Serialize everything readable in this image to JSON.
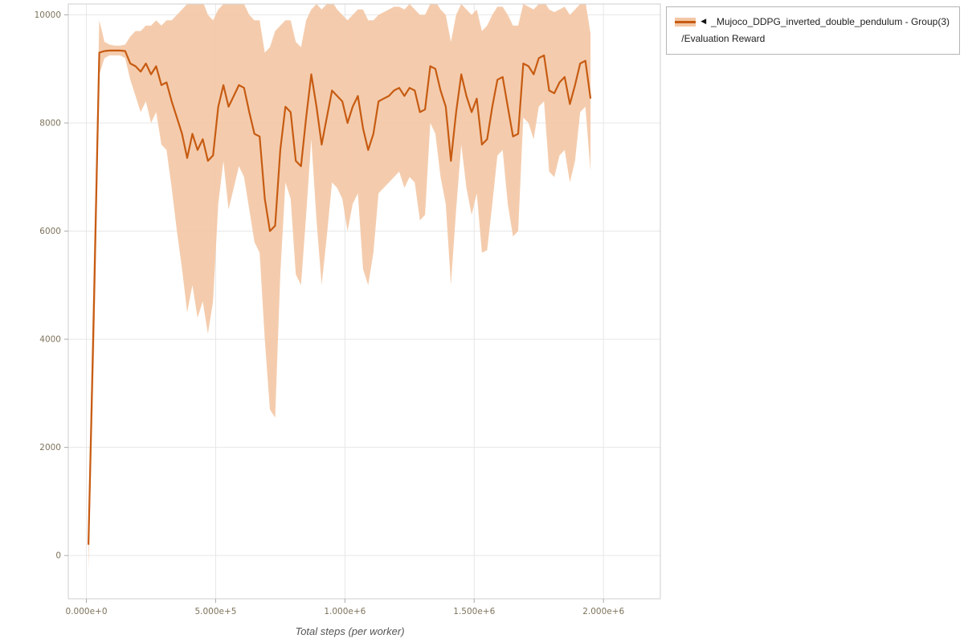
{
  "legend": {
    "collapse_marker": "◀",
    "group_label": "_Mujoco_DDPG_inverted_double_pendulum - Group(3)",
    "metric_label": "/Evaluation Reward"
  },
  "colors": {
    "line": "#c75b12",
    "band": "#f3c7a4"
  },
  "axes": {
    "x_label": "Total steps (per worker)",
    "x_ticks": [
      {
        "value": 0,
        "label": "0.000e+0"
      },
      {
        "value": 500000,
        "label": "5.000e+5"
      },
      {
        "value": 1000000,
        "label": "1.000e+6"
      },
      {
        "value": 1500000,
        "label": "1.500e+6"
      },
      {
        "value": 2000000,
        "label": "2.000e+6"
      }
    ],
    "y_ticks": [
      {
        "value": 0,
        "label": "0"
      },
      {
        "value": 2000,
        "label": "2000"
      },
      {
        "value": 4000,
        "label": "4000"
      },
      {
        "value": 6000,
        "label": "6000"
      },
      {
        "value": 8000,
        "label": "8000"
      },
      {
        "value": 10000,
        "label": "10000"
      }
    ]
  },
  "chart_data": {
    "type": "line",
    "title": "",
    "xlabel": "Total steps (per worker)",
    "ylabel": "Evaluation Reward",
    "series_name": "_Mujoco_DDPG_inverted_double_pendulum - Group(3) /Evaluation Reward",
    "legend_position": "top-right-outside",
    "grid": true,
    "xlim": [
      -70000,
      2220000
    ],
    "ylim": [
      -800,
      10200
    ],
    "x": [
      8000,
      30000,
      50000,
      70000,
      90000,
      110000,
      130000,
      150000,
      170000,
      190000,
      210000,
      230000,
      250000,
      270000,
      290000,
      310000,
      330000,
      350000,
      370000,
      390000,
      410000,
      430000,
      450000,
      470000,
      490000,
      510000,
      530000,
      550000,
      570000,
      590000,
      610000,
      630000,
      650000,
      670000,
      690000,
      710000,
      730000,
      750000,
      770000,
      790000,
      810000,
      830000,
      850000,
      870000,
      890000,
      910000,
      930000,
      950000,
      970000,
      990000,
      1010000,
      1030000,
      1050000,
      1070000,
      1090000,
      1110000,
      1130000,
      1150000,
      1170000,
      1190000,
      1210000,
      1230000,
      1250000,
      1270000,
      1290000,
      1310000,
      1330000,
      1350000,
      1370000,
      1390000,
      1410000,
      1430000,
      1450000,
      1470000,
      1490000,
      1510000,
      1530000,
      1550000,
      1570000,
      1590000,
      1610000,
      1630000,
      1650000,
      1670000,
      1690000,
      1710000,
      1730000,
      1750000,
      1770000,
      1790000,
      1810000,
      1830000,
      1850000,
      1870000,
      1890000,
      1910000,
      1930000,
      1950000
    ],
    "mean": [
      200,
      4800,
      9300,
      9330,
      9340,
      9340,
      9340,
      9330,
      9100,
      9050,
      8950,
      9100,
      8900,
      9050,
      8700,
      8750,
      8400,
      8100,
      7800,
      7350,
      7800,
      7500,
      7700,
      7300,
      7400,
      8300,
      8700,
      8300,
      8500,
      8700,
      8650,
      8200,
      7800,
      7750,
      6600,
      6000,
      6100,
      7500,
      8300,
      8200,
      7300,
      7200,
      8100,
      8900,
      8300,
      7600,
      8100,
      8600,
      8500,
      8400,
      8000,
      8300,
      8500,
      7900,
      7500,
      7800,
      8400,
      8450,
      8500,
      8600,
      8650,
      8500,
      8650,
      8600,
      8200,
      8250,
      9050,
      9000,
      8600,
      8300,
      7300,
      8200,
      8900,
      8500,
      8200,
      8450,
      7600,
      7700,
      8300,
      8800,
      8850,
      8300,
      7750,
      7800,
      9100,
      9050,
      8900,
      9200,
      9250,
      8600,
      8550,
      8750,
      8850,
      8350,
      8700,
      9100,
      9150,
      8450
    ],
    "lower": [
      -250,
      3800,
      8900,
      9200,
      9250,
      9250,
      9250,
      9200,
      8800,
      8500,
      8200,
      8400,
      8000,
      8200,
      7600,
      7500,
      6800,
      6000,
      5300,
      4500,
      5000,
      4400,
      4700,
      4100,
      4700,
      6500,
      7300,
      6400,
      6800,
      7200,
      7000,
      6400,
      5800,
      5600,
      4000,
      2700,
      2550,
      5200,
      6900,
      6600,
      5200,
      5000,
      6300,
      7700,
      6200,
      5000,
      5900,
      6900,
      6800,
      6600,
      6000,
      6500,
      6700,
      5300,
      5000,
      5600,
      6700,
      6800,
      6900,
      7000,
      7100,
      6800,
      7000,
      6900,
      6200,
      6300,
      8000,
      7800,
      7000,
      6500,
      5000,
      6400,
      7600,
      6800,
      6300,
      6700,
      5600,
      5650,
      6500,
      7400,
      7500,
      6500,
      5900,
      6000,
      8100,
      8000,
      7700,
      8300,
      8400,
      7100,
      7000,
      7400,
      7500,
      6900,
      7300,
      8200,
      8300,
      7100
    ],
    "upper": [
      650,
      5800,
      9900,
      9500,
      9450,
      9430,
      9430,
      9450,
      9600,
      9700,
      9700,
      9800,
      9800,
      9900,
      9800,
      9900,
      9900,
      10000,
      10100,
      10200,
      10250,
      10200,
      10250,
      10000,
      9900,
      10100,
      10200,
      10250,
      10200,
      10250,
      10200,
      10000,
      9900,
      9900,
      9300,
      9400,
      9700,
      9800,
      9900,
      9900,
      9500,
      9400,
      9900,
      10100,
      10200,
      10100,
      10200,
      10250,
      10100,
      10000,
      9900,
      10000,
      10100,
      10100,
      9900,
      9900,
      10000,
      10050,
      10100,
      10150,
      10150,
      10100,
      10200,
      10100,
      10000,
      10000,
      10200,
      10250,
      10100,
      10000,
      9500,
      10000,
      10200,
      10100,
      10000,
      10100,
      9700,
      9800,
      10000,
      10150,
      10150,
      10000,
      9800,
      9800,
      10200,
      10150,
      10100,
      10200,
      10250,
      10100,
      10050,
      10100,
      10150,
      10000,
      10100,
      10200,
      10250,
      9650
    ]
  }
}
